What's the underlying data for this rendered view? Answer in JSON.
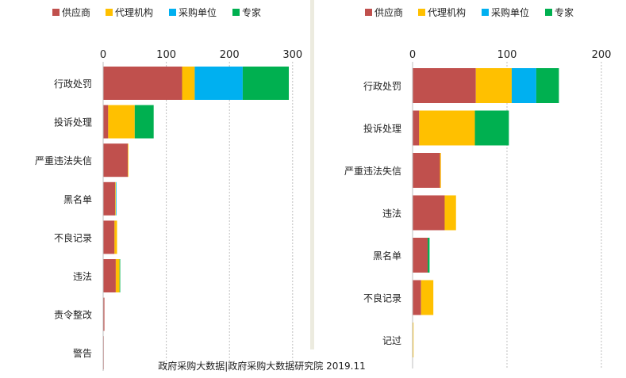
{
  "footer": "政府采购大数据|政府采购大数据研究院 2019.11",
  "chart_data": [
    {
      "type": "bar",
      "orientation": "horizontal",
      "stacked": true,
      "categories": [
        "行政处罚",
        "投诉处理",
        "严重违法失信",
        "黑名单",
        "不良记录",
        "违法",
        "责令整改",
        "警告"
      ],
      "series": [
        {
          "name": "供应商",
          "color": "#c0504d",
          "values": [
            125,
            8,
            39,
            19,
            18,
            20,
            2,
            1
          ]
        },
        {
          "name": "代理机构",
          "color": "#ffc000",
          "values": [
            20,
            42,
            1,
            1,
            4,
            6,
            0,
            0
          ]
        },
        {
          "name": "采购单位",
          "color": "#00b0f0",
          "values": [
            76,
            0,
            0,
            1,
            0,
            0,
            0,
            0
          ]
        },
        {
          "name": "专家",
          "color": "#00b050",
          "values": [
            73,
            30,
            0,
            0,
            0,
            1,
            0,
            0
          ]
        }
      ],
      "xlim": [
        0,
        300
      ],
      "xticks": [
        0,
        100,
        200,
        300
      ],
      "legend": "top",
      "grid": "vertical dashed"
    },
    {
      "type": "bar",
      "orientation": "horizontal",
      "stacked": true,
      "categories": [
        "行政处罚",
        "投诉处理",
        "严重违法失信",
        "违法",
        "黑名单",
        "不良记录",
        "记过"
      ],
      "series": [
        {
          "name": "供应商",
          "color": "#c0504d",
          "values": [
            67,
            7,
            29,
            34,
            16,
            9,
            0
          ]
        },
        {
          "name": "代理机构",
          "color": "#ffc000",
          "values": [
            38,
            59,
            1,
            12,
            0,
            13,
            1
          ]
        },
        {
          "name": "采购单位",
          "color": "#00b0f0",
          "values": [
            26,
            0,
            0,
            0,
            0,
            0,
            0
          ]
        },
        {
          "name": "专家",
          "color": "#00b050",
          "values": [
            24,
            36,
            0,
            0,
            2,
            0,
            0
          ]
        }
      ],
      "xlim": [
        0,
        200
      ],
      "xticks": [
        0,
        100,
        200
      ],
      "legend": "top",
      "grid": "vertical dashed"
    }
  ]
}
